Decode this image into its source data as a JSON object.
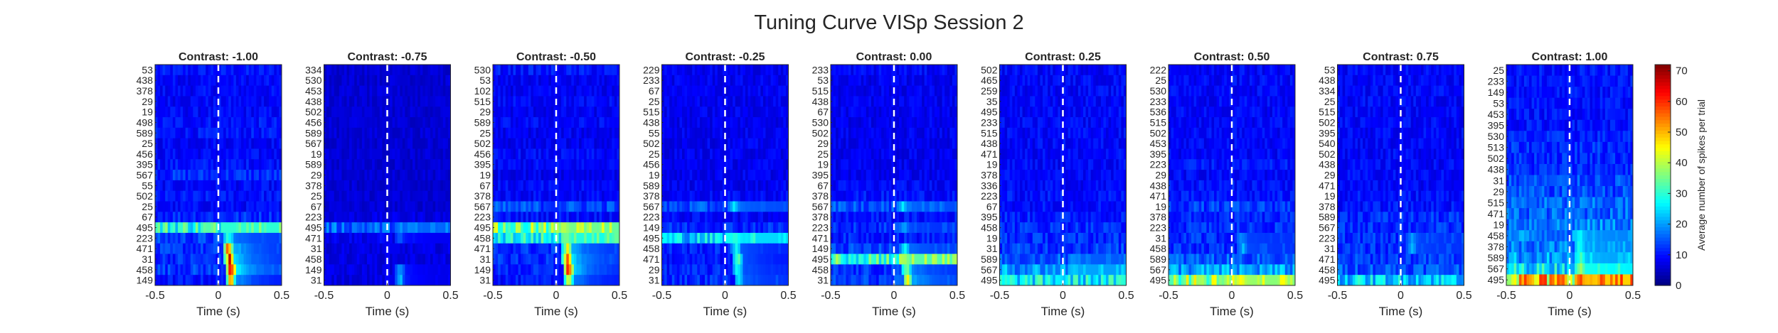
{
  "figure": {
    "title": "Tuning Curve VISp Session 2"
  },
  "colorbar": {
    "label": "Average number of spikes per trial",
    "min": 0,
    "max": 72,
    "ticks": [
      0,
      10,
      20,
      30,
      40,
      50,
      60,
      70
    ],
    "colormap": "jet"
  },
  "chart_data": [
    {
      "type": "heatmap",
      "title": "Contrast: -1.00",
      "xlabel": "Time (s)",
      "xlim": [
        -0.5,
        0.5
      ],
      "xticks": [
        -0.5,
        0,
        0.5
      ],
      "ylabels": [
        "53",
        "438",
        "378",
        "29",
        "19",
        "498",
        "589",
        "25",
        "456",
        "395",
        "567",
        "55",
        "502",
        "25",
        "67",
        "495",
        "223",
        "471",
        "31",
        "458",
        "149"
      ],
      "stimulus_onset": 0,
      "row_levels": [
        10,
        9,
        9,
        9,
        9,
        10,
        10,
        9,
        9,
        10,
        12,
        9,
        10,
        9,
        12,
        30,
        13,
        12,
        12,
        13,
        10
      ],
      "response_rows": [
        {
          "row": 15,
          "peak": 30,
          "onset": 0.06
        },
        {
          "row": 16,
          "peak": 33,
          "onset": 0.06
        },
        {
          "row": 17,
          "peak": 60,
          "onset": 0.06
        },
        {
          "row": 18,
          "peak": 65,
          "onset": 0.07
        },
        {
          "row": 19,
          "peak": 72,
          "onset": 0.08
        },
        {
          "row": 20,
          "peak": 55,
          "onset": 0.08
        }
      ]
    },
    {
      "type": "heatmap",
      "title": "Contrast: -0.75",
      "xlabel": "Time (s)",
      "xlim": [
        -0.5,
        0.5
      ],
      "xticks": [
        -0.5,
        0,
        0.5
      ],
      "ylabels": [
        "334",
        "530",
        "453",
        "438",
        "502",
        "456",
        "589",
        "567",
        "19",
        "589",
        "29",
        "378",
        "25",
        "67",
        "223",
        "495",
        "471",
        "31",
        "458",
        "149",
        "31"
      ],
      "stimulus_onset": 0,
      "row_levels": [
        6,
        6,
        6,
        6,
        6,
        6,
        6,
        6,
        6,
        6,
        6,
        6,
        6,
        6,
        7,
        16,
        8,
        7,
        7,
        7,
        7
      ],
      "response_rows": [
        {
          "row": 15,
          "peak": 16,
          "onset": 0.08
        },
        {
          "row": 16,
          "peak": 16,
          "onset": 0.08
        },
        {
          "row": 19,
          "peak": 22,
          "onset": 0.08
        },
        {
          "row": 20,
          "peak": 24,
          "onset": 0.08
        }
      ]
    },
    {
      "type": "heatmap",
      "title": "Contrast: -0.50",
      "xlabel": "Time (s)",
      "xlim": [
        -0.5,
        0.5
      ],
      "xticks": [
        -0.5,
        0,
        0.5
      ],
      "ylabels": [
        "530",
        "53",
        "102",
        "515",
        "29",
        "589",
        "25",
        "502",
        "456",
        "395",
        "19",
        "67",
        "378",
        "567",
        "223",
        "495",
        "458",
        "471",
        "31",
        "149",
        "31"
      ],
      "stimulus_onset": 0,
      "row_levels": [
        10,
        8,
        8,
        9,
        8,
        9,
        8,
        8,
        9,
        9,
        8,
        9,
        9,
        14,
        10,
        34,
        28,
        12,
        12,
        11,
        10
      ],
      "response_rows": [
        {
          "row": 15,
          "peak": 40,
          "onset": 0.05
        },
        {
          "row": 16,
          "peak": 38,
          "onset": 0.06
        },
        {
          "row": 17,
          "peak": 50,
          "onset": 0.07
        },
        {
          "row": 18,
          "peak": 62,
          "onset": 0.07
        },
        {
          "row": 19,
          "peak": 66,
          "onset": 0.08
        },
        {
          "row": 20,
          "peak": 48,
          "onset": 0.08
        }
      ]
    },
    {
      "type": "heatmap",
      "title": "Contrast: -0.25",
      "xlabel": "Time (s)",
      "xlim": [
        -0.5,
        0.5
      ],
      "xticks": [
        -0.5,
        0,
        0.5
      ],
      "ylabels": [
        "229",
        "233",
        "67",
        "25",
        "515",
        "438",
        "55",
        "502",
        "25",
        "456",
        "19",
        "589",
        "378",
        "567",
        "223",
        "149",
        "495",
        "458",
        "471",
        "29",
        "31"
      ],
      "stimulus_onset": 0,
      "row_levels": [
        8,
        8,
        8,
        8,
        8,
        8,
        8,
        8,
        8,
        8,
        8,
        8,
        9,
        14,
        9,
        12,
        24,
        11,
        10,
        11,
        12
      ],
      "response_rows": [
        {
          "row": 13,
          "peak": 25,
          "onset": 0.05
        },
        {
          "row": 16,
          "peak": 30,
          "onset": 0.06
        },
        {
          "row": 17,
          "peak": 30,
          "onset": 0.07
        },
        {
          "row": 18,
          "peak": 35,
          "onset": 0.08
        },
        {
          "row": 19,
          "peak": 30,
          "onset": 0.08
        },
        {
          "row": 20,
          "peak": 28,
          "onset": 0.09
        }
      ]
    },
    {
      "type": "heatmap",
      "title": "Contrast: 0.00",
      "xlabel": "Time (s)",
      "xlim": [
        -0.5,
        0.5
      ],
      "xticks": [
        -0.5,
        0,
        0.5
      ],
      "ylabels": [
        "233",
        "53",
        "515",
        "438",
        "67",
        "530",
        "502",
        "29",
        "25",
        "19",
        "395",
        "67",
        "378",
        "567",
        "378",
        "223",
        "471",
        "149",
        "495",
        "458",
        "31"
      ],
      "stimulus_onset": 0,
      "row_levels": [
        9,
        8,
        8,
        8,
        8,
        8,
        8,
        8,
        8,
        8,
        8,
        9,
        10,
        14,
        10,
        12,
        11,
        13,
        32,
        12,
        13
      ],
      "response_rows": [
        {
          "row": 13,
          "peak": 26,
          "onset": 0.05
        },
        {
          "row": 15,
          "peak": 22,
          "onset": 0.06
        },
        {
          "row": 17,
          "peak": 28,
          "onset": 0.07
        },
        {
          "row": 18,
          "peak": 40,
          "onset": 0.06
        },
        {
          "row": 19,
          "peak": 40,
          "onset": 0.08
        },
        {
          "row": 20,
          "peak": 48,
          "onset": 0.09
        }
      ]
    },
    {
      "type": "heatmap",
      "title": "Contrast: 0.25",
      "xlabel": "Time (s)",
      "xlim": [
        -0.5,
        0.5
      ],
      "xticks": [
        -0.5,
        0,
        0.5
      ],
      "ylabels": [
        "502",
        "465",
        "259",
        "35",
        "495",
        "233",
        "515",
        "438",
        "471",
        "19",
        "378",
        "336",
        "223",
        "67",
        "395",
        "458",
        "19",
        "31",
        "589",
        "567",
        "495"
      ],
      "stimulus_onset": 0,
      "row_levels": [
        9,
        9,
        9,
        9,
        9,
        9,
        9,
        9,
        9,
        9,
        9,
        9,
        10,
        10,
        11,
        12,
        12,
        13,
        15,
        20,
        26
      ],
      "response_rows": [
        {
          "row": 18,
          "peak": 20,
          "onset": 0.06
        },
        {
          "row": 19,
          "peak": 24,
          "onset": 0.07
        }
      ]
    },
    {
      "type": "heatmap",
      "title": "Contrast: 0.50",
      "xlabel": "Time (s)",
      "xlim": [
        -0.5,
        0.5
      ],
      "xticks": [
        -0.5,
        0,
        0.5
      ],
      "ylabels": [
        "222",
        "25",
        "530",
        "233",
        "536",
        "515",
        "502",
        "453",
        "395",
        "223",
        "29",
        "438",
        "471",
        "19",
        "378",
        "223",
        "31",
        "458",
        "589",
        "567",
        "495"
      ],
      "stimulus_onset": 0,
      "row_levels": [
        9,
        9,
        9,
        9,
        9,
        9,
        9,
        9,
        9,
        10,
        9,
        10,
        10,
        13,
        11,
        12,
        12,
        12,
        15,
        20,
        36
      ],
      "response_rows": [
        {
          "row": 16,
          "peak": 20,
          "onset": 0.06
        },
        {
          "row": 17,
          "peak": 22,
          "onset": 0.07
        },
        {
          "row": 20,
          "peak": 46,
          "onset": 0.05
        }
      ]
    },
    {
      "type": "heatmap",
      "title": "Contrast: 0.75",
      "xlabel": "Time (s)",
      "xlim": [
        -0.5,
        0.5
      ],
      "xticks": [
        -0.5,
        0,
        0.5
      ],
      "ylabels": [
        "53",
        "438",
        "334",
        "25",
        "515",
        "502",
        "395",
        "540",
        "502",
        "438",
        "29",
        "471",
        "19",
        "378",
        "589",
        "567",
        "223",
        "31",
        "471",
        "458",
        "495"
      ],
      "stimulus_onset": 0,
      "row_levels": [
        9,
        9,
        9,
        9,
        9,
        9,
        9,
        9,
        9,
        9,
        9,
        9,
        10,
        10,
        12,
        12,
        12,
        12,
        13,
        15,
        24
      ],
      "response_rows": [
        {
          "row": 16,
          "peak": 20,
          "onset": 0.07
        },
        {
          "row": 17,
          "peak": 22,
          "onset": 0.07
        }
      ]
    },
    {
      "type": "heatmap",
      "title": "Contrast: 1.00",
      "xlabel": "Time (s)",
      "xlim": [
        -0.5,
        0.5
      ],
      "xticks": [
        -0.5,
        0,
        0.5
      ],
      "ylabels": [
        "25",
        "233",
        "149",
        "53",
        "453",
        "395",
        "530",
        "513",
        "502",
        "438",
        "31",
        "29",
        "515",
        "471",
        "19",
        "458",
        "378",
        "589",
        "567",
        "495"
      ],
      "stimulus_onset": 0,
      "row_levels": [
        10,
        10,
        10,
        10,
        10,
        10,
        11,
        12,
        12,
        12,
        14,
        14,
        16,
        16,
        18,
        18,
        18,
        20,
        26,
        48
      ],
      "response_rows": [
        {
          "row": 15,
          "peak": 28,
          "onset": 0.06
        },
        {
          "row": 16,
          "peak": 30,
          "onset": 0.06
        },
        {
          "row": 17,
          "peak": 32,
          "onset": 0.07
        },
        {
          "row": 18,
          "peak": 38,
          "onset": 0.07
        },
        {
          "row": 19,
          "peak": 55,
          "onset": 0.06
        }
      ]
    }
  ]
}
